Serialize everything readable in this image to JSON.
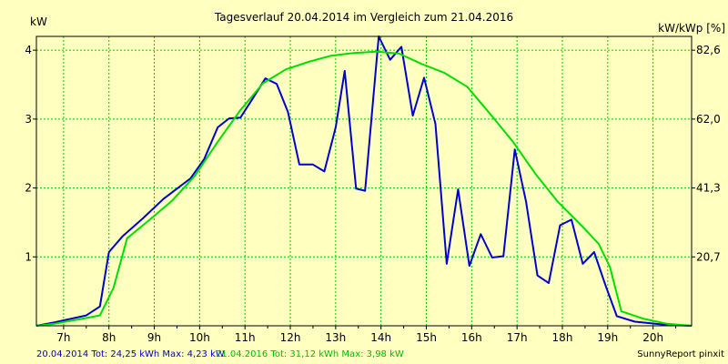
{
  "chart_data": {
    "type": "line",
    "title": "Tagesverlauf 20.04.2014 im Vergleich zum 21.04.2016",
    "left_axis_unit": "kW",
    "right_axis_unit": "kW/kWp [%]",
    "x_ticks": [
      "7h",
      "8h",
      "9h",
      "10h",
      "11h",
      "12h",
      "13h",
      "14h",
      "15h",
      "16h",
      "17h",
      "18h",
      "19h",
      "20h"
    ],
    "x_tick_hours": [
      7,
      8,
      9,
      10,
      11,
      12,
      13,
      14,
      15,
      16,
      17,
      18,
      19,
      20
    ],
    "y_ticks": [
      "1",
      "2",
      "3",
      "4"
    ],
    "y_tick_values": [
      1,
      2,
      3,
      4
    ],
    "y2_ticks": [
      "20,7",
      "41,3",
      "62,0",
      "82,6"
    ],
    "xlim": [
      6.4,
      20.85
    ],
    "ylim": [
      0,
      4.2
    ],
    "grid": true,
    "series": [
      {
        "name": "20.04.2014",
        "color": "#0000cc",
        "points": [
          [
            6.4,
            0.0
          ],
          [
            6.8,
            0.05
          ],
          [
            7.5,
            0.15
          ],
          [
            7.8,
            0.28
          ],
          [
            8.0,
            1.07
          ],
          [
            8.3,
            1.3
          ],
          [
            8.75,
            1.56
          ],
          [
            9.2,
            1.84
          ],
          [
            9.8,
            2.14
          ],
          [
            10.1,
            2.42
          ],
          [
            10.4,
            2.88
          ],
          [
            10.65,
            3.01
          ],
          [
            10.9,
            3.02
          ],
          [
            11.2,
            3.33
          ],
          [
            11.45,
            3.59
          ],
          [
            11.7,
            3.51
          ],
          [
            11.95,
            3.1
          ],
          [
            12.2,
            2.34
          ],
          [
            12.5,
            2.34
          ],
          [
            12.75,
            2.24
          ],
          [
            13.0,
            2.88
          ],
          [
            13.2,
            3.7
          ],
          [
            13.45,
            1.99
          ],
          [
            13.65,
            1.96
          ],
          [
            13.95,
            4.2
          ],
          [
            14.2,
            3.86
          ],
          [
            14.45,
            4.05
          ],
          [
            14.7,
            3.05
          ],
          [
            14.95,
            3.6
          ],
          [
            15.2,
            2.93
          ],
          [
            15.45,
            0.9
          ],
          [
            15.7,
            1.98
          ],
          [
            15.95,
            0.87
          ],
          [
            16.2,
            1.33
          ],
          [
            16.45,
            0.99
          ],
          [
            16.7,
            1.01
          ],
          [
            16.95,
            2.56
          ],
          [
            17.2,
            1.8
          ],
          [
            17.45,
            0.73
          ],
          [
            17.7,
            0.62
          ],
          [
            17.95,
            1.46
          ],
          [
            18.2,
            1.54
          ],
          [
            18.45,
            0.9
          ],
          [
            18.7,
            1.07
          ],
          [
            18.95,
            0.59
          ],
          [
            19.2,
            0.14
          ],
          [
            19.6,
            0.06
          ],
          [
            20.2,
            0.02
          ],
          [
            20.85,
            0.0
          ]
        ]
      },
      {
        "name": "21.04.2016",
        "color": "#00dd00",
        "points": [
          [
            6.4,
            0.0
          ],
          [
            6.8,
            0.03
          ],
          [
            7.4,
            0.1
          ],
          [
            7.8,
            0.15
          ],
          [
            8.1,
            0.55
          ],
          [
            8.4,
            1.27
          ],
          [
            8.9,
            1.54
          ],
          [
            9.4,
            1.82
          ],
          [
            9.9,
            2.18
          ],
          [
            10.4,
            2.67
          ],
          [
            10.9,
            3.13
          ],
          [
            11.4,
            3.52
          ],
          [
            11.9,
            3.72
          ],
          [
            12.4,
            3.83
          ],
          [
            12.9,
            3.92
          ],
          [
            13.4,
            3.96
          ],
          [
            13.9,
            3.98
          ],
          [
            14.4,
            3.95
          ],
          [
            14.9,
            3.8
          ],
          [
            15.4,
            3.67
          ],
          [
            15.9,
            3.47
          ],
          [
            16.4,
            3.08
          ],
          [
            16.9,
            2.68
          ],
          [
            17.4,
            2.21
          ],
          [
            17.9,
            1.8
          ],
          [
            18.4,
            1.47
          ],
          [
            18.8,
            1.19
          ],
          [
            19.05,
            0.85
          ],
          [
            19.3,
            0.21
          ],
          [
            19.8,
            0.1
          ],
          [
            20.3,
            0.03
          ],
          [
            20.85,
            0.0
          ]
        ]
      }
    ]
  },
  "footer": {
    "series1_summary": "20.04.2014 Tot: 24,25 kWh Max: 4,23 kW",
    "series2_summary": "21.04.2016 Tot: 31,12 kWh Max: 3,98 kW",
    "credit": "SunnyReport pinxit"
  },
  "colors": {
    "background": "#ffffc0",
    "grid": "#00cc00",
    "axis": "#000000"
  }
}
